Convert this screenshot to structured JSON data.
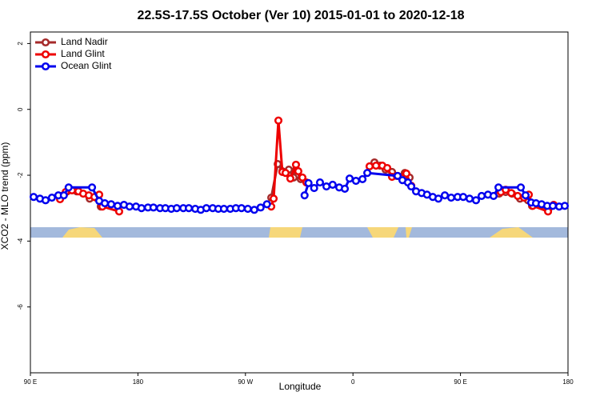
{
  "chart_data": {
    "type": "line",
    "title": "22.5S-17.5S October (Ver 10)   2015-01-01 to 2020-12-18",
    "x_label": "Longitude",
    "y_label": "XCO2 - MLO trend (ppm)",
    "xlim": [
      90,
      540
    ],
    "ylim": [
      -8.0,
      2.35
    ],
    "xticks": [
      {
        "value": 90,
        "label": "90 E"
      },
      {
        "value": 180,
        "label": "180"
      },
      {
        "value": 270,
        "label": "90 W"
      },
      {
        "value": 360,
        "label": "0"
      },
      {
        "value": 450,
        "label": "90 E"
      },
      {
        "value": 540,
        "label": "180"
      }
    ],
    "yticks": [
      -6,
      -4,
      -2,
      0,
      2
    ],
    "legend": "top-left",
    "series": [
      {
        "name": "Land Nadir",
        "color": "#a52a2a",
        "x": [
          115.4,
          120.8,
          128.8,
          139.6,
          144.9,
          148.9,
          null,
          291.6,
          297,
          300.9,
          306.3,
          310.3,
          312.3,
          316.3,
          null,
          378,
          382.6,
          387.3,
          392.7,
          397.4,
          403.4,
          407.4,
          null,
          482.4,
          487.8,
          493.1,
          499.8,
          506.5,
          509.9,
          524
        ],
        "values": [
          -2.63,
          -2.49,
          -2.49,
          -2.71,
          -2.68,
          -2.95,
          null,
          -2.68,
          -1.66,
          -1.88,
          -1.83,
          -2.07,
          -1.83,
          -2.12,
          null,
          -1.61,
          -1.71,
          -1.83,
          -1.9,
          -2.02,
          -1.93,
          -2.07,
          null,
          -2.56,
          -2.51,
          -2.56,
          -2.71,
          -2.76,
          -2.93,
          -3.0
        ]
      },
      {
        "name": "Land Glint",
        "color": "#ee0000",
        "x": [
          114.8,
          119.5,
          124.8,
          130.2,
          134.2,
          138.9,
          143.6,
          147.6,
          150.3,
          164.3,
          null,
          291.6,
          293.6,
          297.6,
          300.9,
          303.6,
          307.6,
          312.3,
          314.3,
          317.7,
          321,
          null,
          373.9,
          379.3,
          384.6,
          388.7,
          392.7,
          396.7,
          404.7,
          408.8,
          null,
          483.8,
          487.8,
          492.5,
          497.9,
          503.2,
          507.2,
          510.5,
          523.3,
          528
        ],
        "values": [
          -2.73,
          -2.51,
          -2.46,
          -2.49,
          -2.56,
          -2.61,
          -2.66,
          -2.59,
          -2.95,
          -3.1,
          null,
          -2.95,
          -2.71,
          -0.34,
          -1.9,
          -1.93,
          -2.1,
          -1.68,
          -1.88,
          -2.07,
          -2.22,
          null,
          -1.73,
          -1.71,
          -1.71,
          -1.78,
          -2.05,
          -2.02,
          -1.95,
          -2.32,
          null,
          -2.51,
          -2.44,
          -2.54,
          -2.63,
          -2.68,
          -2.59,
          -2.93,
          -3.1,
          -2.9
        ]
      },
      {
        "name": "Ocean Glint",
        "color": "#0000ee",
        "x": [
          92.7,
          98,
          102.7,
          108,
          113.4,
          118,
          122,
          141.6,
          147.6,
          152.3,
          157.6,
          163,
          168.3,
          173,
          178.4,
          183,
          188.4,
          193,
          198.5,
          203,
          207.9,
          212.5,
          218,
          222.6,
          228,
          232.6,
          237.3,
          242.6,
          247.3,
          252,
          257.3,
          262,
          266.7,
          272,
          277.4,
          282.7,
          288,
          null,
          319.5,
          322.8,
          327.5,
          332.4,
          337.8,
          343,
          348.5,
          353.2,
          357.2,
          362.5,
          368,
          372,
          397.4,
          401.4,
          406,
          408.8,
          412.8,
          417.5,
          422,
          426.8,
          431.5,
          436.9,
          442.2,
          447.6,
          452.3,
          457.6,
          463,
          467.7,
          473,
          477.7,
          481.8,
          500.5,
          504.5,
          509.2,
          513.2,
          517.9,
          522.6,
          527.3,
          532.6,
          537.3
        ],
        "values": [
          -2.66,
          -2.71,
          -2.76,
          -2.68,
          -2.61,
          -2.61,
          -2.37,
          -2.37,
          -2.78,
          -2.85,
          -2.88,
          -2.93,
          -2.9,
          -2.95,
          -2.95,
          -3.0,
          -2.98,
          -2.98,
          -3.0,
          -3.0,
          -3.02,
          -3.0,
          -3.0,
          -3.0,
          -3.02,
          -3.05,
          -3.0,
          -3.0,
          -3.02,
          -3.02,
          -3.02,
          -3.0,
          -3.0,
          -3.02,
          -3.05,
          -2.98,
          -2.88,
          null,
          -2.61,
          -2.24,
          -2.39,
          -2.22,
          -2.34,
          -2.29,
          -2.37,
          -2.41,
          -2.1,
          -2.17,
          -2.12,
          -1.93,
          -2.02,
          -2.15,
          -2.22,
          -2.34,
          -2.49,
          -2.54,
          -2.59,
          -2.66,
          -2.71,
          -2.61,
          -2.68,
          -2.66,
          -2.66,
          -2.71,
          -2.76,
          -2.63,
          -2.59,
          -2.63,
          -2.37,
          -2.37,
          -2.61,
          -2.83,
          -2.85,
          -2.88,
          -2.93,
          -2.93,
          -2.95,
          -2.93
        ]
      }
    ]
  }
}
